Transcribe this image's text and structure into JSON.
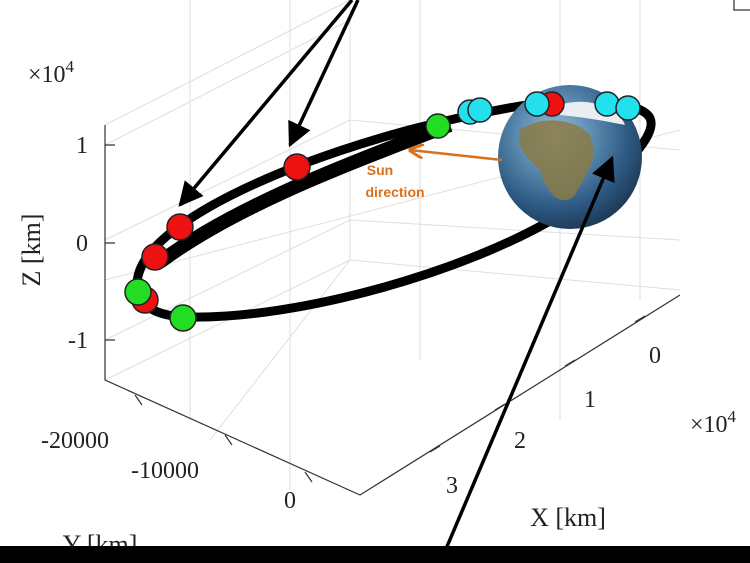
{
  "z_axis": {
    "label": "Z [km]",
    "exponent_base": "×10",
    "exponent_power": "4",
    "ticks": [
      "1",
      "0",
      "-1"
    ]
  },
  "y_axis": {
    "label": "Y [km]",
    "ticks": [
      "-20000",
      "-10000",
      "0"
    ]
  },
  "x_axis": {
    "label": "X [km]",
    "exponent_base": "×10",
    "exponent_power": "4",
    "ticks": [
      "0",
      "1",
      "2",
      "3"
    ]
  },
  "annotation": {
    "line1": "Sun",
    "line2": "direction"
  }
}
